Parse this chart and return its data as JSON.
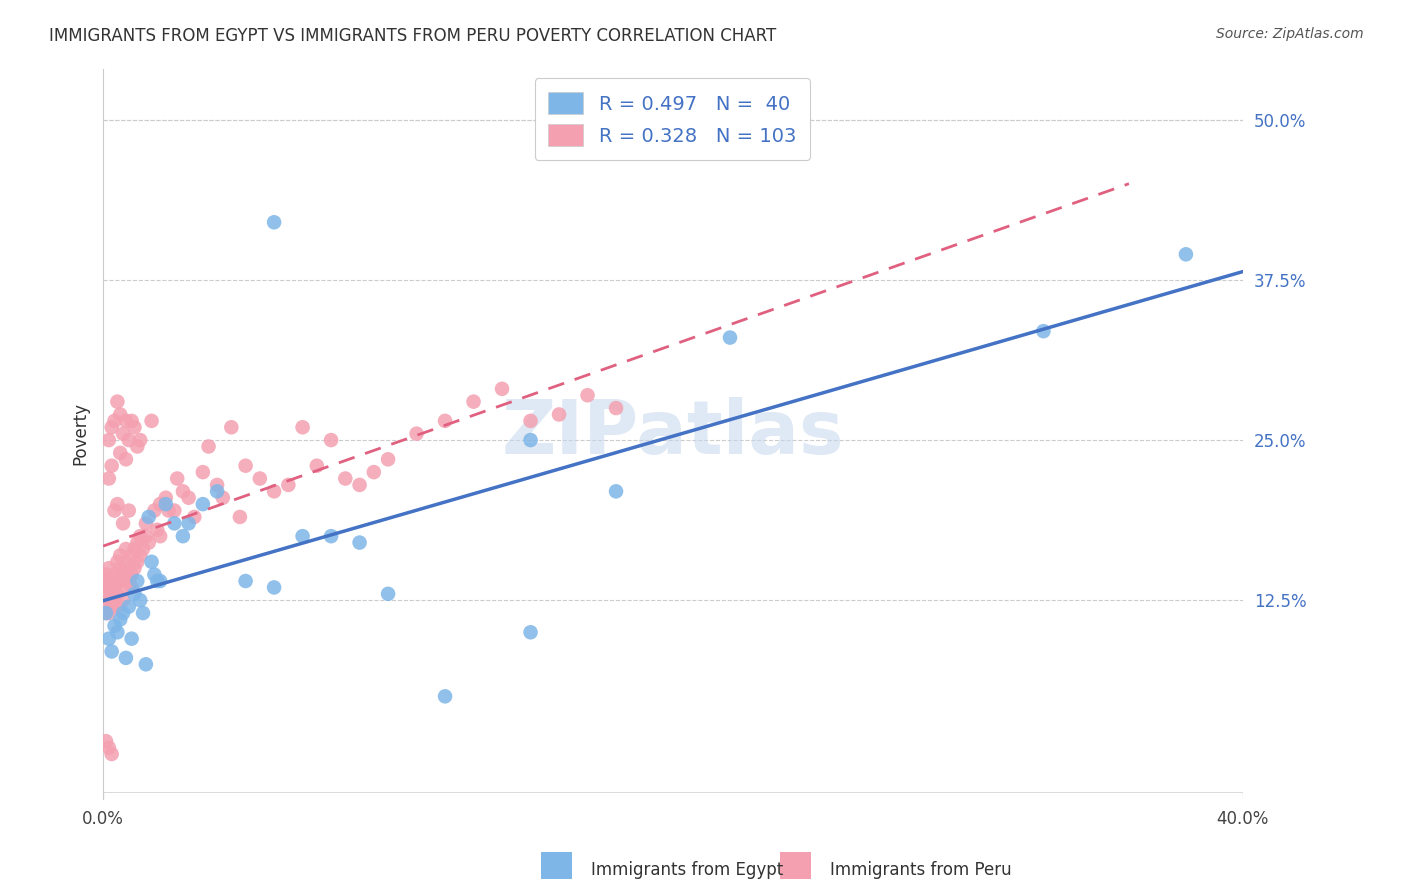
{
  "title": "IMMIGRANTS FROM EGYPT VS IMMIGRANTS FROM PERU POVERTY CORRELATION CHART",
  "source": "Source: ZipAtlas.com",
  "ylabel": "Poverty",
  "yticks": [
    "12.5%",
    "25.0%",
    "37.5%",
    "50.0%"
  ],
  "ytick_vals": [
    0.125,
    0.25,
    0.375,
    0.5
  ],
  "xlim": [
    0.0,
    0.4
  ],
  "ylim": [
    -0.03,
    0.54
  ],
  "egypt_color": "#7EB6E8",
  "peru_color": "#F4A0B0",
  "egypt_line_color": "#4472C4",
  "peru_line_color": "#E06080",
  "egypt_R": 0.497,
  "egypt_N": 40,
  "peru_R": 0.328,
  "peru_N": 103,
  "legend_R_color": "#4472C4",
  "watermark": "ZIPatlas",
  "egypt_x": [
    0.001,
    0.002,
    0.003,
    0.004,
    0.005,
    0.006,
    0.007,
    0.008,
    0.009,
    0.01,
    0.011,
    0.012,
    0.013,
    0.014,
    0.015,
    0.016,
    0.017,
    0.018,
    0.019,
    0.02,
    0.022,
    0.025,
    0.028,
    0.03,
    0.035,
    0.04,
    0.05,
    0.06,
    0.07,
    0.08,
    0.09,
    0.1,
    0.12,
    0.15,
    0.18,
    0.22,
    0.15,
    0.06,
    0.38,
    0.33
  ],
  "egypt_y": [
    0.115,
    0.095,
    0.085,
    0.105,
    0.1,
    0.11,
    0.115,
    0.08,
    0.12,
    0.095,
    0.13,
    0.14,
    0.125,
    0.115,
    0.075,
    0.19,
    0.155,
    0.145,
    0.14,
    0.14,
    0.2,
    0.185,
    0.175,
    0.185,
    0.2,
    0.21,
    0.14,
    0.135,
    0.175,
    0.175,
    0.17,
    0.13,
    0.05,
    0.1,
    0.21,
    0.33,
    0.25,
    0.42,
    0.395,
    0.335
  ],
  "peru_x": [
    0.001,
    0.001,
    0.001,
    0.001,
    0.001,
    0.002,
    0.002,
    0.002,
    0.002,
    0.003,
    0.003,
    0.003,
    0.004,
    0.004,
    0.004,
    0.005,
    0.005,
    0.005,
    0.005,
    0.006,
    0.006,
    0.006,
    0.007,
    0.007,
    0.007,
    0.008,
    0.008,
    0.008,
    0.009,
    0.009,
    0.01,
    0.01,
    0.01,
    0.011,
    0.011,
    0.012,
    0.012,
    0.013,
    0.013,
    0.014,
    0.015,
    0.015,
    0.016,
    0.017,
    0.018,
    0.019,
    0.02,
    0.02,
    0.022,
    0.023,
    0.025,
    0.026,
    0.028,
    0.03,
    0.032,
    0.035,
    0.037,
    0.04,
    0.042,
    0.045,
    0.048,
    0.05,
    0.055,
    0.06,
    0.065,
    0.07,
    0.075,
    0.08,
    0.085,
    0.09,
    0.095,
    0.1,
    0.11,
    0.12,
    0.13,
    0.14,
    0.15,
    0.16,
    0.17,
    0.18,
    0.002,
    0.003,
    0.004,
    0.005,
    0.006,
    0.007,
    0.008,
    0.009,
    0.01,
    0.011,
    0.012,
    0.013,
    0.003,
    0.006,
    0.008,
    0.002,
    0.004,
    0.005,
    0.007,
    0.009,
    0.001,
    0.002,
    0.003
  ],
  "peru_y": [
    0.14,
    0.13,
    0.12,
    0.115,
    0.145,
    0.135,
    0.125,
    0.15,
    0.115,
    0.14,
    0.13,
    0.12,
    0.145,
    0.135,
    0.125,
    0.155,
    0.14,
    0.13,
    0.12,
    0.15,
    0.14,
    0.16,
    0.145,
    0.135,
    0.125,
    0.155,
    0.14,
    0.165,
    0.15,
    0.14,
    0.16,
    0.145,
    0.135,
    0.165,
    0.15,
    0.17,
    0.155,
    0.175,
    0.16,
    0.165,
    0.175,
    0.185,
    0.17,
    0.265,
    0.195,
    0.18,
    0.2,
    0.175,
    0.205,
    0.195,
    0.195,
    0.22,
    0.21,
    0.205,
    0.19,
    0.225,
    0.245,
    0.215,
    0.205,
    0.26,
    0.19,
    0.23,
    0.22,
    0.21,
    0.215,
    0.26,
    0.23,
    0.25,
    0.22,
    0.215,
    0.225,
    0.235,
    0.255,
    0.265,
    0.28,
    0.29,
    0.265,
    0.27,
    0.285,
    0.275,
    0.25,
    0.26,
    0.265,
    0.28,
    0.27,
    0.255,
    0.265,
    0.25,
    0.265,
    0.26,
    0.245,
    0.25,
    0.23,
    0.24,
    0.235,
    0.22,
    0.195,
    0.2,
    0.185,
    0.195,
    0.015,
    0.01,
    0.005
  ]
}
